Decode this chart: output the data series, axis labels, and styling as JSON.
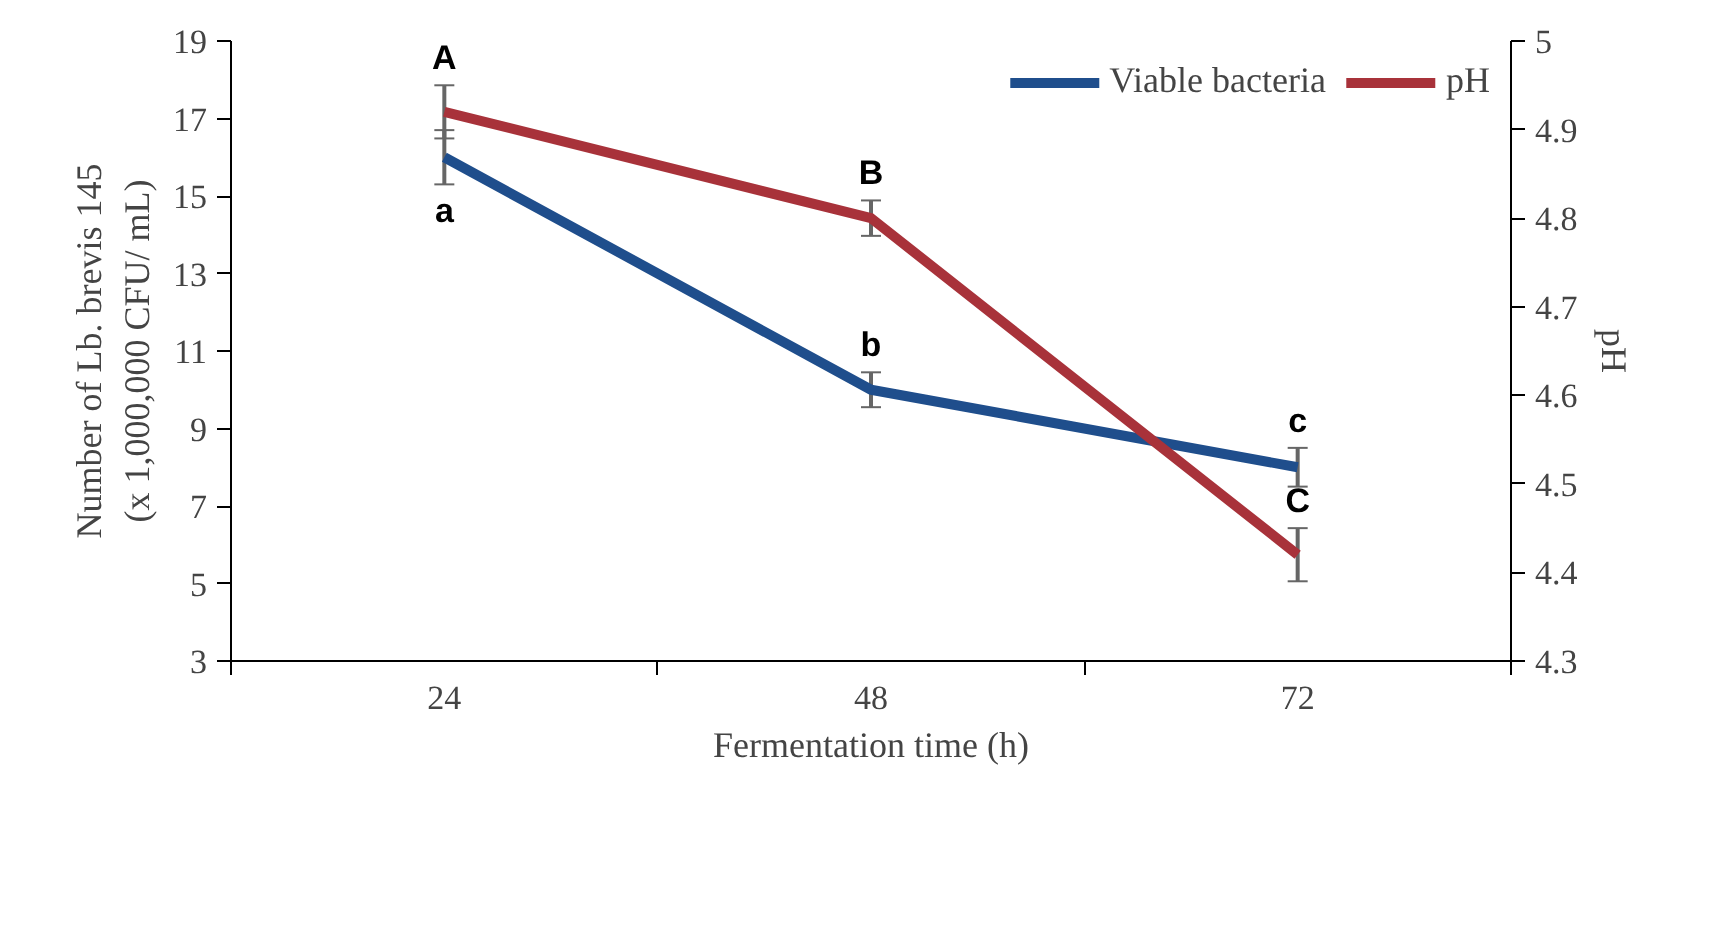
{
  "chart_data": {
    "type": "line",
    "xlabel": "Fermentation time (h)",
    "ylabel": "Number of Lb. brevis 145\n(x 1,000,000 CFU/ mL)",
    "y2label": "pH",
    "categories": [
      "24",
      "48",
      "72"
    ],
    "ylim": [
      3,
      19
    ],
    "yticks": [
      3,
      5,
      7,
      9,
      11,
      13,
      15,
      17,
      19
    ],
    "y2lim": [
      4.3,
      5
    ],
    "y2ticks": [
      4.3,
      4.4,
      4.5,
      4.6,
      4.7,
      4.8,
      4.9,
      5
    ],
    "grid": false,
    "legend": "top right",
    "marker": "none",
    "series": [
      {
        "name": "Viable bacteria",
        "color": "#1f4e8c",
        "values": [
          16,
          10,
          8
        ],
        "errors": [
          0.7,
          0.45,
          0.5
        ],
        "value_labels": [
          "a",
          "b",
          "c"
        ]
      },
      {
        "name": "pH",
        "color": "#a8323a",
        "axis": "y2",
        "values": [
          4.92,
          4.8,
          4.42
        ],
        "errors": [
          0.03,
          0.02,
          0.03
        ],
        "value_labels": [
          "A",
          "B",
          "C"
        ]
      }
    ]
  }
}
